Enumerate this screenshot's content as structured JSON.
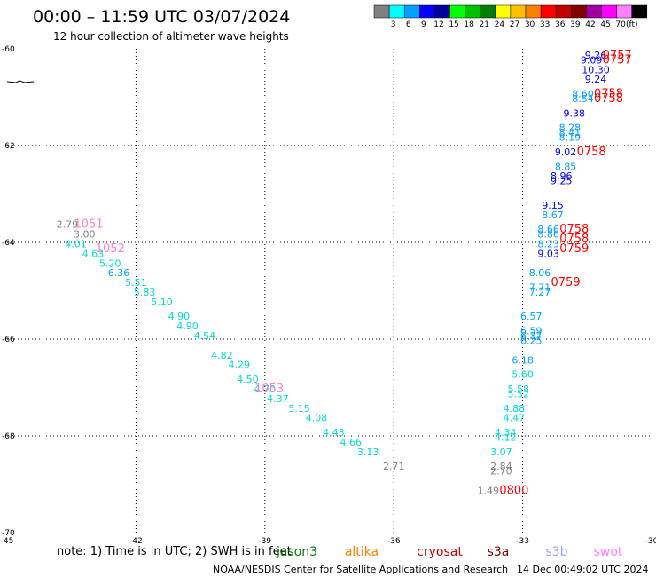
{
  "header": {
    "title": "00:00 – 11:59 UTC 03/07/2024",
    "subtitle": "12 hour collection of altimeter wave heights"
  },
  "legend": {
    "colors": [
      "#808080",
      "#00ffff",
      "#00a0ff",
      "#0000ff",
      "#0000a0",
      "#00ff00",
      "#00c000",
      "#008000",
      "#ffff00",
      "#ffc000",
      "#ff8000",
      "#ff0000",
      "#c00000",
      "#800000",
      "#a000a0",
      "#ff00ff",
      "#ff80ff",
      "#000000"
    ],
    "labels": [
      "3",
      "6",
      "9",
      "12",
      "15",
      "18",
      "21",
      "24",
      "27",
      "30",
      "33",
      "36",
      "39",
      "42",
      "45",
      "70"
    ],
    "unit": "(ft)"
  },
  "footer": {
    "note": "note:  1) Time is in UTC; 2) SWH is in feet",
    "satellites": [
      {
        "name": "jason3",
        "color": "#008000"
      },
      {
        "name": "altika",
        "color": "#ff8000"
      },
      {
        "name": "cryosat",
        "color": "#c00000"
      },
      {
        "name": "s3a",
        "color": "#800000"
      },
      {
        "name": "s3b",
        "color": "#a0a0ff"
      },
      {
        "name": "swot",
        "color": "#ff80ff"
      }
    ],
    "credit": "NOAA/NESDIS Center for Satellite Applications and Research",
    "timestamp": "14 Dec 00:49:02 UTC 2024"
  },
  "chart_data": {
    "type": "scatter",
    "title": "00:00 – 11:59 UTC 03/07/2024",
    "subtitle": "12 hour collection of altimeter wave heights",
    "xlim": [
      -45,
      -30
    ],
    "ylim": [
      -70,
      -60
    ],
    "x_ticks": [
      "-45",
      "-42",
      "-39",
      "-36",
      "-33",
      "-30"
    ],
    "y_ticks": [
      "-60",
      "-62",
      "-64",
      "-66",
      "-68",
      "-70"
    ],
    "grid": true,
    "wave_heights": [
      {
        "lon": -43.6,
        "lat": -63.7,
        "text": "2.79",
        "color": "#808080"
      },
      {
        "lon": -43.2,
        "lat": -63.9,
        "text": "3.00",
        "color": "#808080"
      },
      {
        "lon": -43.4,
        "lat": -64.1,
        "text": "4.01",
        "color": "#00d8d8"
      },
      {
        "lon": -43.0,
        "lat": -64.3,
        "text": "4.63",
        "color": "#00d8d8"
      },
      {
        "lon": -42.6,
        "lat": -64.5,
        "text": "5.20",
        "color": "#00d8d8"
      },
      {
        "lon": -42.4,
        "lat": -64.7,
        "text": "6.36",
        "color": "#00a0ff"
      },
      {
        "lon": -42.0,
        "lat": -64.9,
        "text": "5.51",
        "color": "#00d8d8"
      },
      {
        "lon": -41.8,
        "lat": -65.1,
        "text": "5.83",
        "color": "#00d8d8"
      },
      {
        "lon": -41.4,
        "lat": -65.3,
        "text": "5.10",
        "color": "#00d8d8"
      },
      {
        "lon": -41.0,
        "lat": -65.6,
        "text": "4.90",
        "color": "#00d8d8"
      },
      {
        "lon": -40.8,
        "lat": -65.8,
        "text": "4.90",
        "color": "#00d8d8"
      },
      {
        "lon": -40.4,
        "lat": -66.0,
        "text": "4.54",
        "color": "#00d8d8"
      },
      {
        "lon": -40.0,
        "lat": -66.4,
        "text": "4.82",
        "color": "#00d8d8"
      },
      {
        "lon": -39.6,
        "lat": -66.6,
        "text": "4.29",
        "color": "#00d8d8"
      },
      {
        "lon": -39.4,
        "lat": -66.9,
        "text": "4.50",
        "color": "#00d8d8"
      },
      {
        "lon": -39.0,
        "lat": -67.1,
        "text": "4.70",
        "color": "#00d8d8"
      },
      {
        "lon": -38.7,
        "lat": -67.3,
        "text": "4.37",
        "color": "#00d8d8"
      },
      {
        "lon": -38.2,
        "lat": -67.5,
        "text": "5.15",
        "color": "#00d8d8"
      },
      {
        "lon": -37.8,
        "lat": -67.7,
        "text": "4.08",
        "color": "#00d8d8"
      },
      {
        "lon": -37.4,
        "lat": -68.0,
        "text": "4.43",
        "color": "#00d8d8"
      },
      {
        "lon": -37.0,
        "lat": -68.2,
        "text": "4.66",
        "color": "#00d8d8"
      },
      {
        "lon": -36.6,
        "lat": -68.4,
        "text": "3.13",
        "color": "#00d8d8"
      },
      {
        "lon": -36.0,
        "lat": -68.7,
        "text": "2.71",
        "color": "#808080"
      },
      {
        "lon": -31.3,
        "lat": -60.2,
        "text": "9.26",
        "color": "#0000ff"
      },
      {
        "lon": -31.4,
        "lat": -60.3,
        "text": "9.09",
        "color": "#0000ff"
      },
      {
        "lon": -31.3,
        "lat": -60.5,
        "text": "10.30",
        "color": "#0000ff"
      },
      {
        "lon": -31.3,
        "lat": -60.7,
        "text": "9.24",
        "color": "#0000ff"
      },
      {
        "lon": -31.6,
        "lat": -61.0,
        "text": "8.60",
        "color": "#00a0ff"
      },
      {
        "lon": -31.6,
        "lat": -61.1,
        "text": "8.54",
        "color": "#00a0ff"
      },
      {
        "lon": -31.8,
        "lat": -61.4,
        "text": "9.38",
        "color": "#0000ff"
      },
      {
        "lon": -31.9,
        "lat": -61.7,
        "text": "8.28",
        "color": "#00a0ff"
      },
      {
        "lon": -31.9,
        "lat": -61.8,
        "text": "8.41",
        "color": "#00a0ff"
      },
      {
        "lon": -31.9,
        "lat": -61.9,
        "text": "8.19",
        "color": "#00a0ff"
      },
      {
        "lon": -32.0,
        "lat": -62.2,
        "text": "9.02",
        "color": "#0000ff"
      },
      {
        "lon": -32.0,
        "lat": -62.5,
        "text": "8.85",
        "color": "#00a0ff"
      },
      {
        "lon": -32.1,
        "lat": -62.7,
        "text": "8.96",
        "color": "#0000ff"
      },
      {
        "lon": -32.1,
        "lat": -62.8,
        "text": "9.25",
        "color": "#0000ff"
      },
      {
        "lon": -32.3,
        "lat": -63.3,
        "text": "9.15",
        "color": "#0000ff"
      },
      {
        "lon": -32.3,
        "lat": -63.5,
        "text": "8.67",
        "color": "#00a0ff"
      },
      {
        "lon": -32.4,
        "lat": -63.8,
        "text": "8.66",
        "color": "#00a0ff"
      },
      {
        "lon": -32.4,
        "lat": -63.9,
        "text": "8.86",
        "color": "#00a0ff"
      },
      {
        "lon": -32.4,
        "lat": -64.1,
        "text": "8.23",
        "color": "#00a0ff"
      },
      {
        "lon": -32.4,
        "lat": -64.3,
        "text": "9.03",
        "color": "#0000ff"
      },
      {
        "lon": -32.6,
        "lat": -64.7,
        "text": "8.06",
        "color": "#00a0ff"
      },
      {
        "lon": -32.6,
        "lat": -65.0,
        "text": "7.71",
        "color": "#00a0ff"
      },
      {
        "lon": -32.6,
        "lat": -65.1,
        "text": "7.27",
        "color": "#00a0ff"
      },
      {
        "lon": -32.8,
        "lat": -65.6,
        "text": "6.57",
        "color": "#00a0ff"
      },
      {
        "lon": -32.8,
        "lat": -65.9,
        "text": "6.59",
        "color": "#00a0ff"
      },
      {
        "lon": -32.8,
        "lat": -66.0,
        "text": "6.37",
        "color": "#00a0ff"
      },
      {
        "lon": -32.8,
        "lat": -66.1,
        "text": "6.25",
        "color": "#00a0ff"
      },
      {
        "lon": -33.0,
        "lat": -66.5,
        "text": "6.18",
        "color": "#00a0ff"
      },
      {
        "lon": -33.0,
        "lat": -66.8,
        "text": "5.60",
        "color": "#00d8d8"
      },
      {
        "lon": -33.1,
        "lat": -67.1,
        "text": "5.58",
        "color": "#00d8d8"
      },
      {
        "lon": -33.1,
        "lat": -67.2,
        "text": "5.52",
        "color": "#00d8d8"
      },
      {
        "lon": -33.2,
        "lat": -67.5,
        "text": "4.88",
        "color": "#00d8d8"
      },
      {
        "lon": -33.2,
        "lat": -67.7,
        "text": "4.47",
        "color": "#00d8d8"
      },
      {
        "lon": -33.4,
        "lat": -68.0,
        "text": "4.34",
        "color": "#00d8d8"
      },
      {
        "lon": -33.4,
        "lat": -68.1,
        "text": "4.12",
        "color": "#00d8d8"
      },
      {
        "lon": -33.5,
        "lat": -68.4,
        "text": "3.07",
        "color": "#00d8d8"
      },
      {
        "lon": -33.5,
        "lat": -68.7,
        "text": "2.84",
        "color": "#808080"
      },
      {
        "lon": -33.5,
        "lat": -68.8,
        "text": "2.70",
        "color": "#808080"
      },
      {
        "lon": -33.8,
        "lat": -69.2,
        "text": "1.49",
        "color": "#808080"
      }
    ],
    "pass_times": [
      {
        "lon": -30.8,
        "lat": -60.2,
        "text": "0757",
        "color": "#ff0000"
      },
      {
        "lon": -30.8,
        "lat": -60.3,
        "text": "0757",
        "color": "#ff0000"
      },
      {
        "lon": -31.0,
        "lat": -61.0,
        "text": "0758",
        "color": "#ff0000"
      },
      {
        "lon": -31.0,
        "lat": -61.1,
        "text": "0758",
        "color": "#ff0000"
      },
      {
        "lon": -31.4,
        "lat": -62.2,
        "text": "0758",
        "color": "#ff0000"
      },
      {
        "lon": -31.8,
        "lat": -63.8,
        "text": "0758",
        "color": "#ff0000"
      },
      {
        "lon": -31.8,
        "lat": -64.0,
        "text": "0758",
        "color": "#ff0000"
      },
      {
        "lon": -31.8,
        "lat": -64.2,
        "text": "0759",
        "color": "#ff0000"
      },
      {
        "lon": -32.0,
        "lat": -64.9,
        "text": "0759",
        "color": "#ff0000"
      },
      {
        "lon": -33.2,
        "lat": -69.2,
        "text": "0800",
        "color": "#ff0000"
      },
      {
        "lon": -43.1,
        "lat": -63.7,
        "text": "1051",
        "color": "#ff80d0"
      },
      {
        "lon": -42.6,
        "lat": -64.2,
        "text": "1052",
        "color": "#ff80d0"
      },
      {
        "lon": -38.9,
        "lat": -67.1,
        "text": "1053",
        "color": "#ff80d0"
      }
    ]
  }
}
